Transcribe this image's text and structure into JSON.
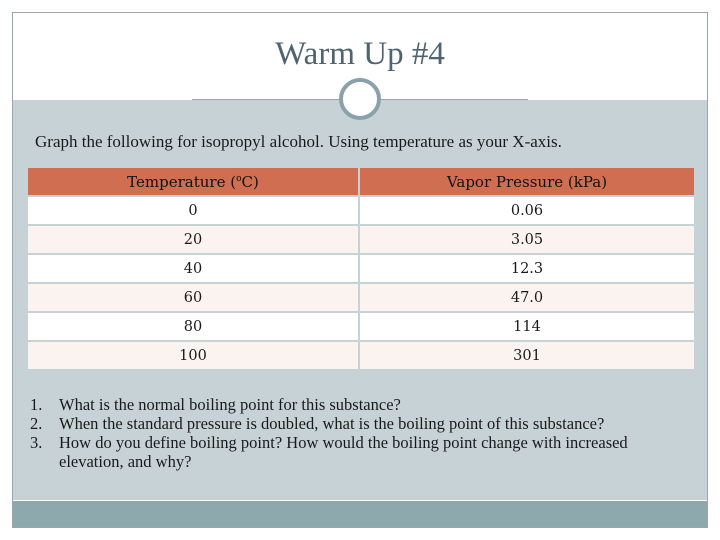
{
  "title": "Warm Up #4",
  "intro": "Graph the following for isopropyl alcohol.  Using temperature as your X-axis.",
  "table": {
    "headers": {
      "temperature_prefix": "Temperature (",
      "temperature_sup": "o",
      "temperature_suffix": "C)",
      "pressure": "Vapor Pressure (kPa)"
    },
    "rows": [
      {
        "temperature": "0",
        "pressure": "0.06"
      },
      {
        "temperature": "20",
        "pressure": "3.05"
      },
      {
        "temperature": "40",
        "pressure": "12.3"
      },
      {
        "temperature": "60",
        "pressure": "47.0"
      },
      {
        "temperature": "80",
        "pressure": "114"
      },
      {
        "temperature": "100",
        "pressure": "301"
      }
    ]
  },
  "questions": [
    {
      "num": "1.",
      "text": "What is the normal boiling point for this substance?"
    },
    {
      "num": "2.",
      "text": "When the standard pressure is doubled, what is the boiling point of this substance?"
    },
    {
      "num": "3.",
      "text": "How do you define boiling point?  How would the boiling point change with increased elevation, and why?"
    }
  ],
  "colors": {
    "header_fill": "#cf6e50",
    "panel": "#c7d2d7",
    "title": "#4f6470",
    "bottom_bar": "#8da9ae"
  }
}
